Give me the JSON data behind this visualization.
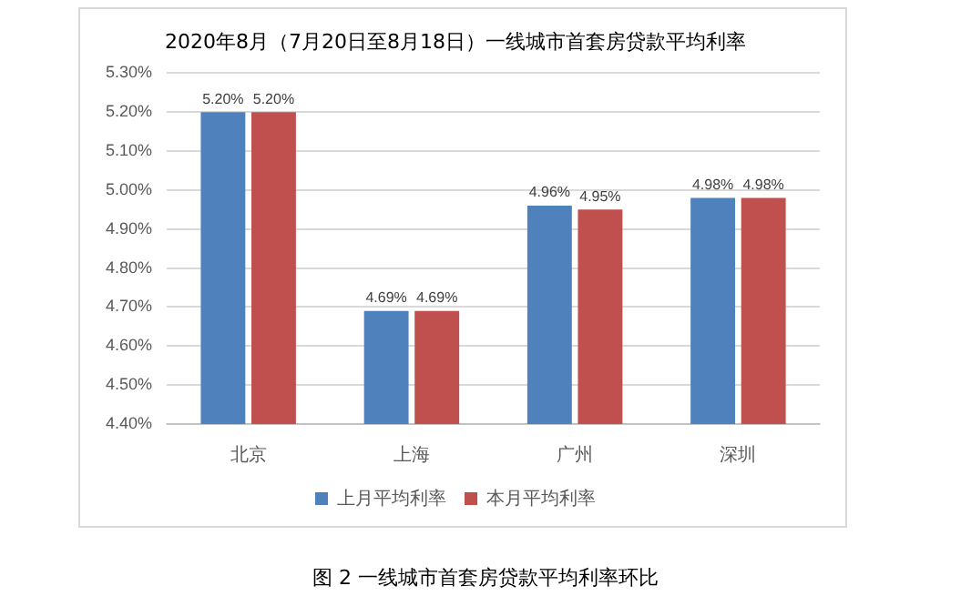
{
  "chart_data": {
    "type": "bar",
    "title": "2020年8月（7月20日至8月18日）一线城市首套房贷款平均利率",
    "categories": [
      "北京",
      "上海",
      "广州",
      "深圳"
    ],
    "series": [
      {
        "name": "上月平均利率",
        "color": "#4f81bd",
        "values": [
          5.2,
          4.69,
          4.96,
          4.98
        ],
        "value_labels": [
          "5.20%",
          "4.69%",
          "4.96%",
          "4.98%"
        ]
      },
      {
        "name": "本月平均利率",
        "color": "#c0504d",
        "values": [
          5.2,
          4.69,
          4.95,
          4.98
        ],
        "value_labels": [
          "5.20%",
          "4.69%",
          "4.95%",
          "4.98%"
        ]
      }
    ],
    "ylim": [
      4.4,
      5.3
    ],
    "yticks": [
      {
        "value": 4.4,
        "label": "4.40%"
      },
      {
        "value": 4.5,
        "label": "4.50%"
      },
      {
        "value": 4.6,
        "label": "4.60%"
      },
      {
        "value": 4.7,
        "label": "4.70%"
      },
      {
        "value": 4.8,
        "label": "4.80%"
      },
      {
        "value": 4.9,
        "label": "4.90%"
      },
      {
        "value": 5.0,
        "label": "5.00%"
      },
      {
        "value": 5.1,
        "label": "5.10%"
      },
      {
        "value": 5.2,
        "label": "5.20%"
      },
      {
        "value": 5.3,
        "label": "5.30%"
      }
    ],
    "grid": "y",
    "legend": "bottom",
    "annotations": [
      "图 2  一线城市首套房贷款平均利率环比"
    ]
  }
}
